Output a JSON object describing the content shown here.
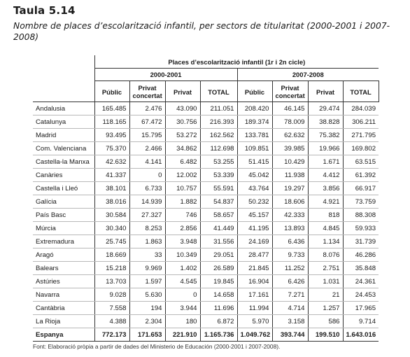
{
  "title": "Taula 5.14",
  "subtitle": "Nombre de places d’escolarització infantil, per sectors de titularitat (2000-2001 i 2007-2008)",
  "table": {
    "group_header": "Places d’escolarització infantil (1r i 2n cicle)",
    "periods": [
      "2000-2001",
      "2007-2008"
    ],
    "columns": [
      "Públic",
      "Privat concertat",
      "Privat",
      "TOTAL",
      "Públic",
      "Privat concertat",
      "Privat",
      "TOTAL"
    ],
    "rows": [
      {
        "label": "Andalusia",
        "values": [
          "165.485",
          "2.476",
          "43.090",
          "211.051",
          "208.420",
          "46.145",
          "29.474",
          "284.039"
        ]
      },
      {
        "label": "Catalunya",
        "values": [
          "118.165",
          "67.472",
          "30.756",
          "216.393",
          "189.374",
          "78.009",
          "38.828",
          "306.211"
        ]
      },
      {
        "label": "Madrid",
        "values": [
          "93.495",
          "15.795",
          "53.272",
          "162.562",
          "133.781",
          "62.632",
          "75.382",
          "271.795"
        ]
      },
      {
        "label": "Com. Valenciana",
        "values": [
          "75.370",
          "2.466",
          "34.862",
          "112.698",
          "109.851",
          "39.985",
          "19.966",
          "169.802"
        ]
      },
      {
        "label": "Castella-la Manxa",
        "values": [
          "42.632",
          "4.141",
          "6.482",
          "53.255",
          "51.415",
          "10.429",
          "1.671",
          "63.515"
        ]
      },
      {
        "label": "Canàries",
        "values": [
          "41.337",
          "0",
          "12.002",
          "53.339",
          "45.042",
          "11.938",
          "4.412",
          "61.392"
        ]
      },
      {
        "label": "Castella i Lleó",
        "values": [
          "38.101",
          "6.733",
          "10.757",
          "55.591",
          "43.764",
          "19.297",
          "3.856",
          "66.917"
        ]
      },
      {
        "label": "Galícia",
        "values": [
          "38.016",
          "14.939",
          "1.882",
          "54.837",
          "50.232",
          "18.606",
          "4.921",
          "73.759"
        ]
      },
      {
        "label": "País Basc",
        "values": [
          "30.584",
          "27.327",
          "746",
          "58.657",
          "45.157",
          "42.333",
          "818",
          "88.308"
        ]
      },
      {
        "label": "Múrcia",
        "values": [
          "30.340",
          "8.253",
          "2.856",
          "41.449",
          "41.195",
          "13.893",
          "4.845",
          "59.933"
        ]
      },
      {
        "label": "Extremadura",
        "values": [
          "25.745",
          "1.863",
          "3.948",
          "31.556",
          "24.169",
          "6.436",
          "1.134",
          "31.739"
        ]
      },
      {
        "label": "Aragó",
        "values": [
          "18.669",
          "33",
          "10.349",
          "29.051",
          "28.477",
          "9.733",
          "8.076",
          "46.286"
        ]
      },
      {
        "label": "Balears",
        "values": [
          "15.218",
          "9.969",
          "1.402",
          "26.589",
          "21.845",
          "11.252",
          "2.751",
          "35.848"
        ]
      },
      {
        "label": "Astúries",
        "values": [
          "13.703",
          "1.597",
          "4.545",
          "19.845",
          "16.904",
          "6.426",
          "1.031",
          "24.361"
        ]
      },
      {
        "label": "Navarra",
        "values": [
          "9.028",
          "5.630",
          "0",
          "14.658",
          "17.161",
          "7.271",
          "21",
          "24.453"
        ]
      },
      {
        "label": "Cantàbria",
        "values": [
          "7.558",
          "194",
          "3.944",
          "11.696",
          "11.994",
          "4.714",
          "1.257",
          "17.965"
        ]
      },
      {
        "label": "La Rioja",
        "values": [
          "4.388",
          "2.304",
          "180",
          "6.872",
          "5.970",
          "3.158",
          "586",
          "9.714"
        ]
      }
    ],
    "total": {
      "label": "Espanya",
      "values": [
        "772.173",
        "171.653",
        "221.910",
        "1.165.736",
        "1.049.762",
        "393.744",
        "199.510",
        "1.643.016"
      ]
    }
  },
  "footnote": "Font: Elaboració pròpia a partir de dades del Ministerio de Educación (2000-2001 i 2007-2008)."
}
